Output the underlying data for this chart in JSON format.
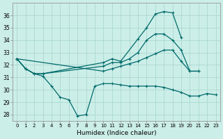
{
  "xlabel": "Humidex (Indice chaleur)",
  "background_color": "#cceee8",
  "grid_color": "#aad8d0",
  "line_color": "#006b6b",
  "ylim": [
    27.5,
    37.0
  ],
  "yticks": [
    28,
    29,
    30,
    31,
    32,
    33,
    34,
    35,
    36
  ],
  "xlim": [
    -0.5,
    23.5
  ],
  "lines": [
    {
      "x": [
        0,
        1,
        2,
        3,
        10,
        11,
        12,
        14,
        15,
        16,
        17,
        18,
        19
      ],
      "y": [
        32.5,
        31.7,
        31.3,
        31.3,
        32.2,
        32.5,
        32.3,
        34.1,
        35.0,
        36.1,
        36.3,
        36.2,
        34.2
      ]
    },
    {
      "x": [
        0,
        1,
        2,
        3,
        10,
        11,
        12,
        13,
        14,
        15,
        16,
        17,
        18,
        19,
        20,
        21
      ],
      "y": [
        32.5,
        31.7,
        31.3,
        31.3,
        31.9,
        32.2,
        32.2,
        32.5,
        33.0,
        34.0,
        34.5,
        34.5,
        34.0,
        33.2,
        31.5,
        31.5
      ]
    },
    {
      "x": [
        0,
        10,
        11,
        12,
        13,
        14,
        15,
        16,
        17,
        18,
        19,
        20,
        21
      ],
      "y": [
        32.5,
        31.5,
        31.7,
        31.9,
        32.1,
        32.3,
        32.6,
        32.9,
        33.2,
        33.2,
        32.3,
        31.5,
        31.5
      ]
    },
    {
      "x": [
        0,
        1,
        2,
        3,
        4,
        5,
        6,
        7,
        8,
        9,
        10,
        11,
        12,
        13,
        14,
        15,
        16,
        17,
        18,
        19,
        20,
        21,
        22,
        23
      ],
      "y": [
        32.5,
        31.7,
        31.3,
        31.1,
        30.3,
        29.4,
        29.2,
        27.9,
        28.0,
        30.3,
        30.5,
        30.5,
        30.4,
        30.3,
        30.3,
        30.3,
        30.3,
        30.2,
        30.0,
        29.8,
        29.5,
        29.5,
        29.7,
        29.6
      ]
    }
  ]
}
